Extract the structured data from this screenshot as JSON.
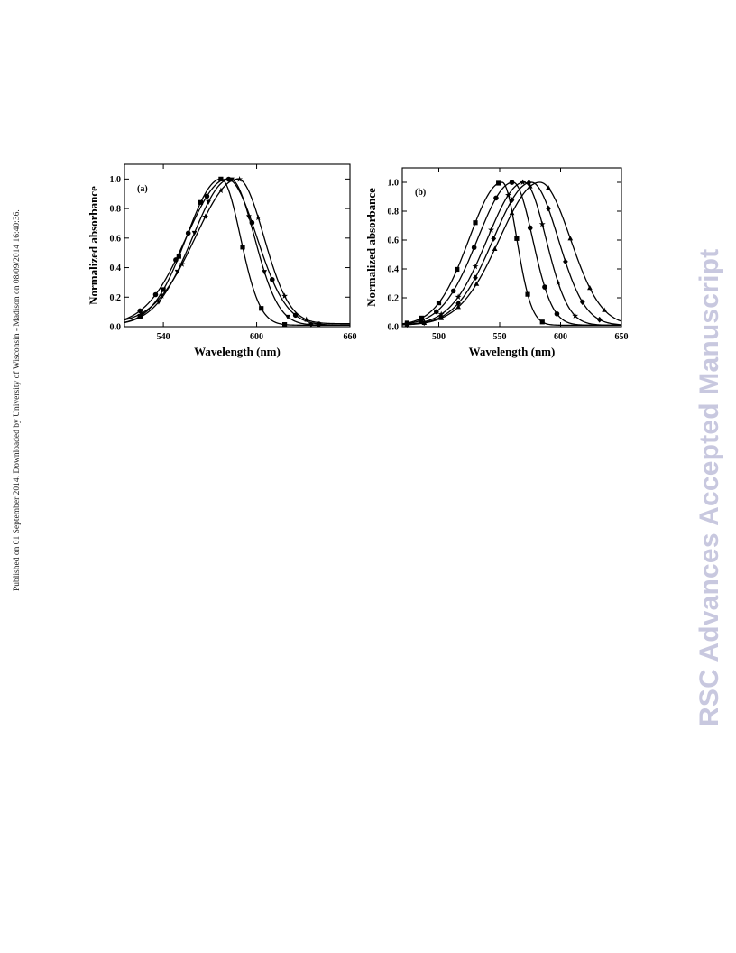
{
  "side_note": "Published on 01 September 2014. Downloaded by University of Wisconsin - Madison on 08/09/2014 16:40:36.",
  "watermark": "RSC Advances Accepted Manuscript",
  "chart_data": [
    {
      "type": "line",
      "panel_label": "(a)",
      "xlabel": "Wavelength (nm)",
      "ylabel": "Normalized absorbance",
      "xlim": [
        515,
        660
      ],
      "ylim": [
        0,
        1.1
      ],
      "xticks": [
        540,
        600,
        660
      ],
      "yticks": [
        0.0,
        0.2,
        0.4,
        0.6,
        0.8,
        1.0
      ],
      "grid": false,
      "legend": "none",
      "series": [
        {
          "marker": "square",
          "peak": 577,
          "width_left": 22,
          "width_right": 12.5,
          "floor": 0.01,
          "marks": [
            525,
            540,
            550,
            564,
            577,
            591,
            603,
            618
          ]
        },
        {
          "marker": "circle",
          "peak": 581,
          "width_left": 26,
          "width_right": 19,
          "floor": 0.01,
          "marks": [
            525,
            535,
            548,
            556,
            568,
            582,
            597,
            610,
            625,
            640
          ]
        },
        {
          "marker": "triangle-down",
          "peak": 583,
          "width_left": 24,
          "width_right": 15.5,
          "floor": 0.01,
          "marks": [
            526,
            537,
            549,
            560,
            569,
            584,
            595,
            605,
            620,
            635
          ]
        },
        {
          "marker": "star",
          "peak": 588,
          "width_left": 27,
          "width_right": 16.5,
          "floor": 0.02,
          "marks": [
            526,
            539,
            552,
            567,
            577,
            589,
            601,
            618,
            632
          ]
        }
      ]
    },
    {
      "type": "line",
      "panel_label": "(b)",
      "xlabel": "Wavelength (nm)",
      "ylabel": "Normalized absorbance",
      "xlim": [
        470,
        650
      ],
      "ylim": [
        0,
        1.1
      ],
      "xticks": [
        500,
        550,
        600,
        650
      ],
      "yticks": [
        0.0,
        0.2,
        0.4,
        0.6,
        0.8,
        1.0
      ],
      "grid": false,
      "legend": "none",
      "series": [
        {
          "marker": "square",
          "peak": 552,
          "width_left": 27,
          "width_right": 12,
          "floor": 0.01,
          "marks": [
            474,
            486,
            500,
            515,
            530,
            549,
            564,
            573,
            585
          ]
        },
        {
          "marker": "circle",
          "peak": 561,
          "width_left": 29,
          "width_right": 16,
          "floor": 0.01,
          "marks": [
            474,
            485,
            498,
            512,
            529,
            547,
            560,
            575,
            587,
            597
          ]
        },
        {
          "marker": "star",
          "peak": 570,
          "width_left": 30,
          "width_right": 18,
          "floor": 0.01,
          "marks": [
            474,
            488,
            502,
            516,
            530,
            543,
            557,
            569,
            585,
            598,
            612
          ]
        },
        {
          "marker": "diamond",
          "peak": 576,
          "width_left": 31,
          "width_right": 22,
          "floor": 0.01,
          "marks": [
            474,
            488,
            502,
            516,
            530,
            545,
            560,
            574,
            590,
            604,
            618,
            632
          ]
        },
        {
          "marker": "triangle-up",
          "peak": 583,
          "width_left": 33,
          "width_right": 25,
          "floor": 0.01,
          "marks": [
            474,
            488,
            502,
            516,
            531,
            546,
            560,
            575,
            590,
            608,
            624,
            636
          ]
        }
      ]
    }
  ]
}
